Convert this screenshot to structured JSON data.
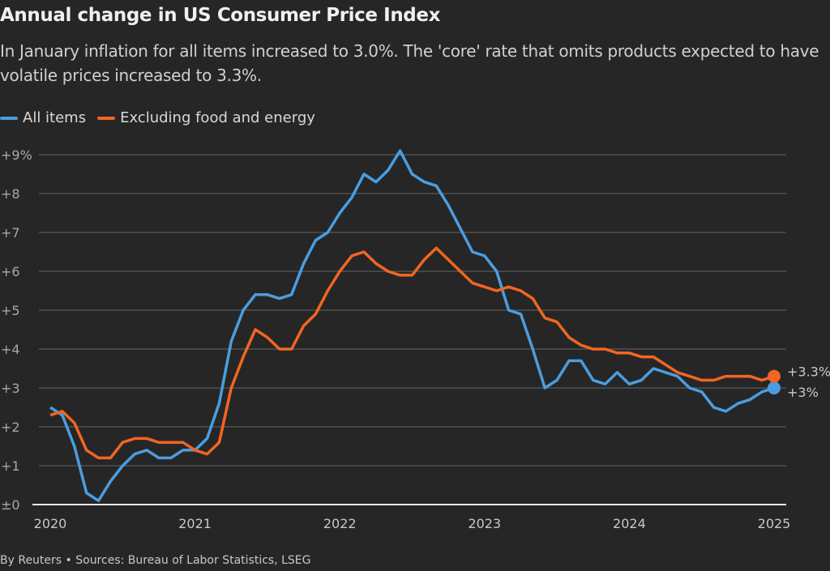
{
  "title": "Annual change in US Consumer Price Index",
  "subtitle": "In January inflation for all items increased to 3.0%. The 'core' rate that omits products expected to have volatile prices increased to 3.3%.",
  "footer": "By Reuters • Sources: Bureau of Labor Statistics, LSEG",
  "colors": {
    "all_items": "#4a9de0",
    "core": "#f26522",
    "background": "#262626"
  },
  "chart_data": {
    "type": "line",
    "title": "Annual change in US Consumer Price Index",
    "x_start": "2020-01",
    "x_end": "2025-01",
    "x_frequency": "monthly",
    "xticks": [
      "2020",
      "2021",
      "2022",
      "2023",
      "2024",
      "2025"
    ],
    "yticks": [
      "±0",
      "+1",
      "+2",
      "+3",
      "+4",
      "+5",
      "+6",
      "+7",
      "+8",
      "+9%"
    ],
    "ylim": [
      0,
      9
    ],
    "grid": true,
    "legend_position": "top-left",
    "series": [
      {
        "name": "All items",
        "color": "#4a9de0",
        "end_label": "+3%",
        "values": [
          2.5,
          2.3,
          1.5,
          0.3,
          0.1,
          0.6,
          1.0,
          1.3,
          1.4,
          1.2,
          1.2,
          1.4,
          1.4,
          1.7,
          2.6,
          4.2,
          5.0,
          5.4,
          5.4,
          5.3,
          5.4,
          6.2,
          6.8,
          7.0,
          7.5,
          7.9,
          8.5,
          8.3,
          8.6,
          9.1,
          8.5,
          8.3,
          8.2,
          7.7,
          7.1,
          6.5,
          6.4,
          6.0,
          5.0,
          4.9,
          4.0,
          3.0,
          3.2,
          3.7,
          3.7,
          3.2,
          3.1,
          3.4,
          3.1,
          3.2,
          3.5,
          3.4,
          3.3,
          3.0,
          2.9,
          2.5,
          2.4,
          2.6,
          2.7,
          2.9,
          3.0
        ]
      },
      {
        "name": "Excluding food and energy",
        "color": "#f26522",
        "end_label": "+3.3%",
        "values": [
          2.3,
          2.4,
          2.1,
          1.4,
          1.2,
          1.2,
          1.6,
          1.7,
          1.7,
          1.6,
          1.6,
          1.6,
          1.4,
          1.3,
          1.6,
          3.0,
          3.8,
          4.5,
          4.3,
          4.0,
          4.0,
          4.6,
          4.9,
          5.5,
          6.0,
          6.4,
          6.5,
          6.2,
          6.0,
          5.9,
          5.9,
          6.3,
          6.6,
          6.3,
          6.0,
          5.7,
          5.6,
          5.5,
          5.6,
          5.5,
          5.3,
          4.8,
          4.7,
          4.3,
          4.1,
          4.0,
          4.0,
          3.9,
          3.9,
          3.8,
          3.8,
          3.6,
          3.4,
          3.3,
          3.2,
          3.2,
          3.3,
          3.3,
          3.3,
          3.2,
          3.3
        ]
      }
    ]
  }
}
